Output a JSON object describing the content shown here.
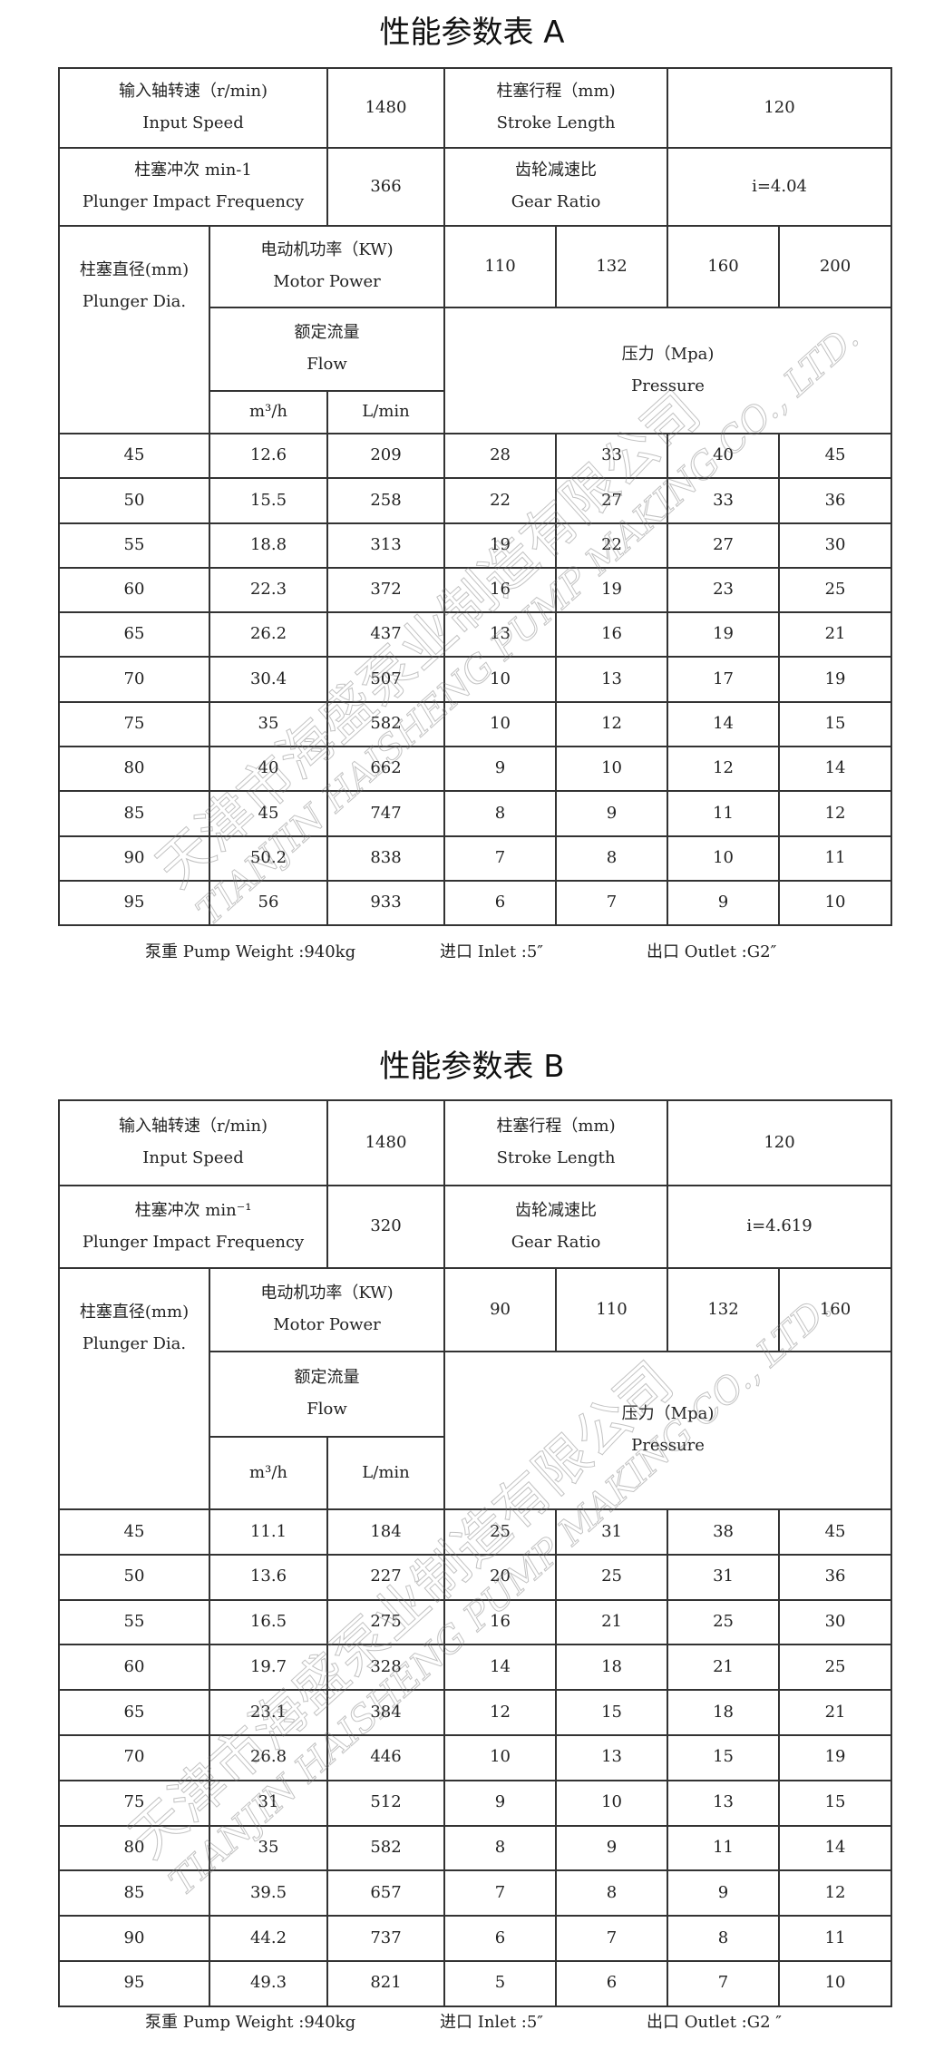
{
  "tables": [
    {
      "title": "性能参数表 A",
      "input_speed": {
        "zh": "输入轴转速（r/min)",
        "en": "Input Speed",
        "value": "1480"
      },
      "stroke_length": {
        "zh": "柱塞行程（mm)",
        "en": "Stroke Length",
        "value": "120"
      },
      "impact_frequency": {
        "zh": "柱塞冲次 min-1",
        "en": "Plunger Impact Frequency",
        "value": "366"
      },
      "gear_ratio": {
        "zh": "齿轮减速比",
        "en": "Gear Ratio",
        "value": "i=4.04"
      },
      "plunger_dia": {
        "zh": "柱塞直径(mm)",
        "en": "Plunger Dia."
      },
      "motor_power": {
        "zh": "电动机功率（KW)",
        "en": "Motor Power",
        "values": [
          "110",
          "132",
          "160",
          "200"
        ]
      },
      "flow": {
        "zh": "额定流量",
        "en": "Flow",
        "unit1": "m³/h",
        "unit2": "L/min"
      },
      "pressure": {
        "zh": "压力（Mpa)",
        "en": "Pressure"
      },
      "rows": [
        [
          "45",
          "12.6",
          "209",
          "28",
          "33",
          "40",
          "45"
        ],
        [
          "50",
          "15.5",
          "258",
          "22",
          "27",
          "33",
          "36"
        ],
        [
          "55",
          "18.8",
          "313",
          "19",
          "22",
          "27",
          "30"
        ],
        [
          "60",
          "22.3",
          "372",
          "16",
          "19",
          "23",
          "25"
        ],
        [
          "65",
          "26.2",
          "437",
          "13",
          "16",
          "19",
          "21"
        ],
        [
          "70",
          "30.4",
          "507",
          "10",
          "13",
          "17",
          "19"
        ],
        [
          "75",
          "35",
          "582",
          "10",
          "12",
          "14",
          "15"
        ],
        [
          "80",
          "40",
          "662",
          "9",
          "10",
          "12",
          "14"
        ],
        [
          "85",
          "45",
          "747",
          "8",
          "9",
          "11",
          "12"
        ],
        [
          "90",
          "50.2",
          "838",
          "7",
          "8",
          "10",
          "11"
        ],
        [
          "95",
          "56",
          "933",
          "6",
          "7",
          "9",
          "10"
        ]
      ],
      "footer": {
        "weight": "泵重 Pump Weight :940kg",
        "inlet": "进口 Inlet :5″",
        "outlet": "出口 Outlet :G2″"
      }
    },
    {
      "title": "性能参数表 B",
      "input_speed": {
        "zh": "输入轴转速（r/min)",
        "en": "Input Speed",
        "value": "1480"
      },
      "stroke_length": {
        "zh": "柱塞行程（mm)",
        "en": "Stroke Length",
        "value": "120"
      },
      "impact_frequency": {
        "zh": "柱塞冲次 min⁻¹",
        "en": "Plunger Impact Frequency",
        "value": "320"
      },
      "gear_ratio": {
        "zh": "齿轮减速比",
        "en": "Gear Ratio",
        "value": "i=4.619"
      },
      "plunger_dia": {
        "zh": "柱塞直径(mm)",
        "en": "Plunger Dia."
      },
      "motor_power": {
        "zh": "电动机功率（KW)",
        "en": "Motor Power",
        "values": [
          "90",
          "110",
          "132",
          "160"
        ]
      },
      "flow": {
        "zh": "额定流量",
        "en": "Flow",
        "unit1": "m³/h",
        "unit2": "L/min"
      },
      "pressure": {
        "zh": "压力（Mpa)",
        "en": "Pressure"
      },
      "rows": [
        [
          "45",
          "11.1",
          "184",
          "25",
          "31",
          "38",
          "45"
        ],
        [
          "50",
          "13.6",
          "227",
          "20",
          "25",
          "31",
          "36"
        ],
        [
          "55",
          "16.5",
          "275",
          "16",
          "21",
          "25",
          "30"
        ],
        [
          "60",
          "19.7",
          "328",
          "14",
          "18",
          "21",
          "25"
        ],
        [
          "65",
          "23.1",
          "384",
          "12",
          "15",
          "18",
          "21"
        ],
        [
          "70",
          "26.8",
          "446",
          "10",
          "13",
          "15",
          "19"
        ],
        [
          "75",
          "31",
          "512",
          "9",
          "10",
          "13",
          "15"
        ],
        [
          "80",
          "35",
          "582",
          "8",
          "9",
          "11",
          "14"
        ],
        [
          "85",
          "39.5",
          "657",
          "7",
          "8",
          "9",
          "12"
        ],
        [
          "90",
          "44.2",
          "737",
          "6",
          "7",
          "8",
          "11"
        ],
        [
          "95",
          "49.3",
          "821",
          "5",
          "6",
          "7",
          "10"
        ]
      ],
      "footer": {
        "weight": "泵重 Pump Weight :940kg",
        "inlet": "进口 Inlet :5″",
        "outlet": "出口 Outlet :G2 ″"
      }
    }
  ],
  "watermark": {
    "zh": "天津市海盛泵业制造有限公司",
    "en": "TIANJIN HAISHENG PUMP MAKING CO., LTD."
  }
}
